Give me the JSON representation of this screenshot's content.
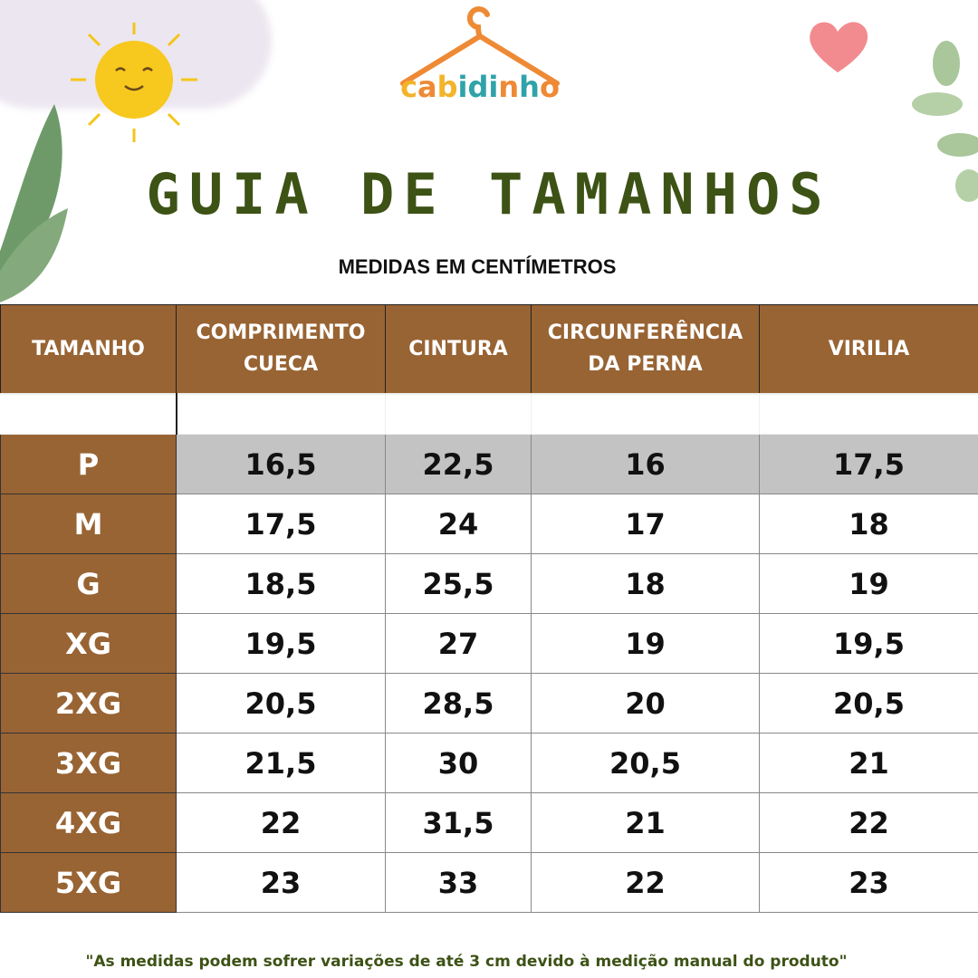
{
  "brand": {
    "name": "cabidinho",
    "colors": {
      "hanger": "#ee8a35",
      "c": "#f2b42a",
      "a": "#ee8a35",
      "b": "#f2b42a",
      "i": "#2fa3a9",
      "d": "#2fa3a9"
    }
  },
  "title": "GUIA DE TAMANHOS",
  "subtitle": "MEDIDAS EM CENTÍMETROS",
  "colors": {
    "header": "#986434",
    "title": "#3d5215",
    "highlight_row": "#c3c3c3"
  },
  "table": {
    "headers": [
      "TAMANHO",
      "COMPRIMENTO CUECA",
      "CINTURA",
      "CIRCUNFERÊNCIA DA PERNA",
      "VIRILIA"
    ],
    "rows": [
      [
        "P",
        "16,5",
        "22,5",
        "16",
        "17,5"
      ],
      [
        "M",
        "17,5",
        "24",
        "17",
        "18"
      ],
      [
        "G",
        "18,5",
        "25,5",
        "18",
        "19"
      ],
      [
        "XG",
        "19,5",
        "27",
        "19",
        "19,5"
      ],
      [
        "2XG",
        "20,5",
        "28,5",
        "20",
        "20,5"
      ],
      [
        "3XG",
        "21,5",
        "30",
        "20,5",
        "21"
      ],
      [
        "4XG",
        "22",
        "31,5",
        "21",
        "22"
      ],
      [
        "5XG",
        "23",
        "33",
        "22",
        "23"
      ]
    ]
  },
  "note": "\"As medidas podem sofrer variações de até 3 cm devido à medição manual do produto\"",
  "decorations": [
    "sun-icon",
    "cloud",
    "leaf-left",
    "leaf-right",
    "heart-icon"
  ]
}
